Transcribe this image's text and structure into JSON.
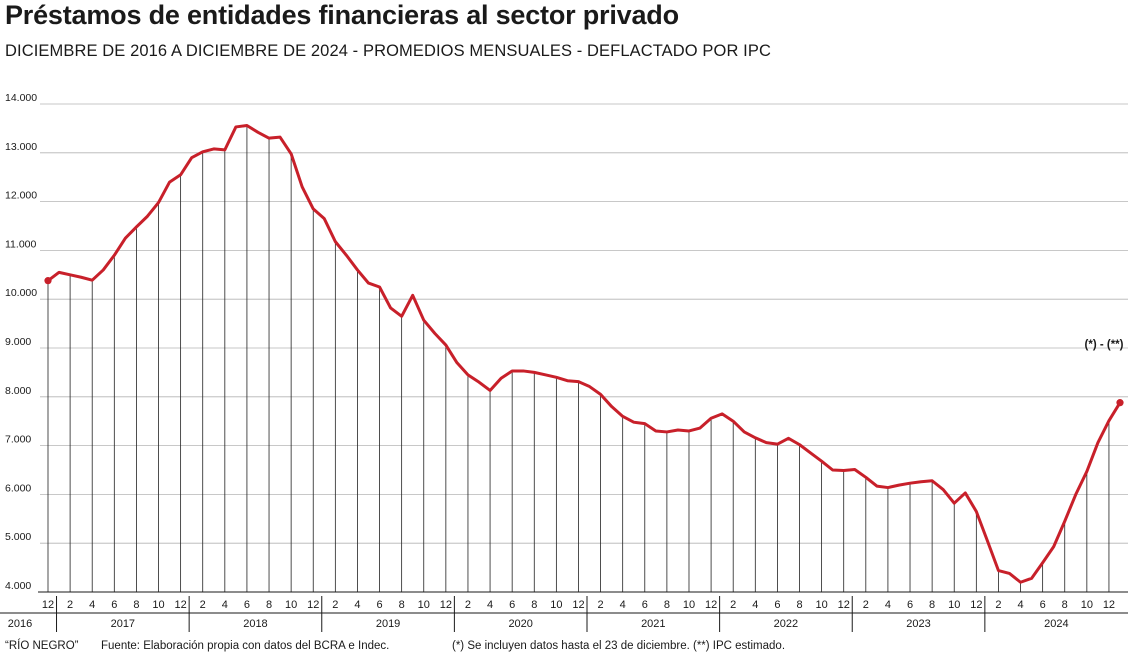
{
  "header": {
    "title": "Préstamos de entidades financieras al sector privado",
    "subtitle": "DICIEMBRE DE 2016 A DICIEMBRE DE 2024 - PROMEDIOS MENSUALES - DEFLACTADO POR IPC"
  },
  "footer": {
    "credit": "“RÍO NEGRO”",
    "source": "Fuente: Elaboración propia con datos del BCRA e Indec.",
    "notes": "(*) Se incluyen datos hasta el 23 de diciembre. (**) IPC estimado."
  },
  "colors": {
    "line": "#c8202a",
    "grid": "#b5b5b5",
    "drop": "#222222"
  },
  "chart_data": {
    "type": "line",
    "title": "Préstamos de entidades financieras al sector privado",
    "subtitle": "DICIEMBRE DE 2016 A DICIEMBRE DE 2024 - PROMEDIOS MENSUALES - DEFLACTADO POR IPC",
    "xlabel": "",
    "ylabel": "",
    "ylim": [
      4000,
      14000
    ],
    "yticks": [
      4000,
      5000,
      6000,
      7000,
      8000,
      9000,
      10000,
      11000,
      12000,
      13000,
      14000
    ],
    "ytick_labels": [
      "4.000",
      "5.000",
      "6.000",
      "7.000",
      "8.000",
      "9.000",
      "10.000",
      "11.000",
      "12.000",
      "13.000",
      "14.000"
    ],
    "month_tick_labels": [
      "2",
      "4",
      "6",
      "8",
      "10",
      "12"
    ],
    "first_month_label": "12",
    "year_labels": [
      "2016",
      "2017",
      "2018",
      "2019",
      "2020",
      "2021",
      "2022",
      "2023",
      "2024"
    ],
    "grid": true,
    "annotation": "(*) - (**)",
    "series": [
      {
        "start": "2016-12",
        "values": [
          10380,
          10550,
          10500,
          10450,
          10390,
          10600,
          10900,
          11250,
          11480,
          11700,
          11980,
          12400,
          12550,
          12900,
          13020,
          13080,
          13060,
          13530,
          13560,
          13420,
          13300,
          13320,
          12980,
          12300,
          11850,
          11650,
          11180,
          10900,
          10600,
          10330,
          10250,
          9820,
          9650,
          10080,
          9570,
          9300,
          9060,
          8700,
          8450,
          8300,
          8130,
          8380,
          8530,
          8530,
          8500,
          8450,
          8400,
          8330,
          8310,
          8210,
          8050,
          7800,
          7600,
          7480,
          7450,
          7300,
          7280,
          7320,
          7300,
          7360,
          7560,
          7650,
          7500,
          7280,
          7160,
          7060,
          7030,
          7150,
          7020,
          6850,
          6680,
          6500,
          6490,
          6510,
          6350,
          6170,
          6140,
          6190,
          6230,
          6260,
          6280,
          6100,
          5820,
          6030,
          5650,
          5050,
          4440,
          4380,
          4200,
          4280,
          4600,
          4930,
          5450,
          6000,
          6470,
          7060,
          7510,
          7880
        ]
      }
    ]
  }
}
